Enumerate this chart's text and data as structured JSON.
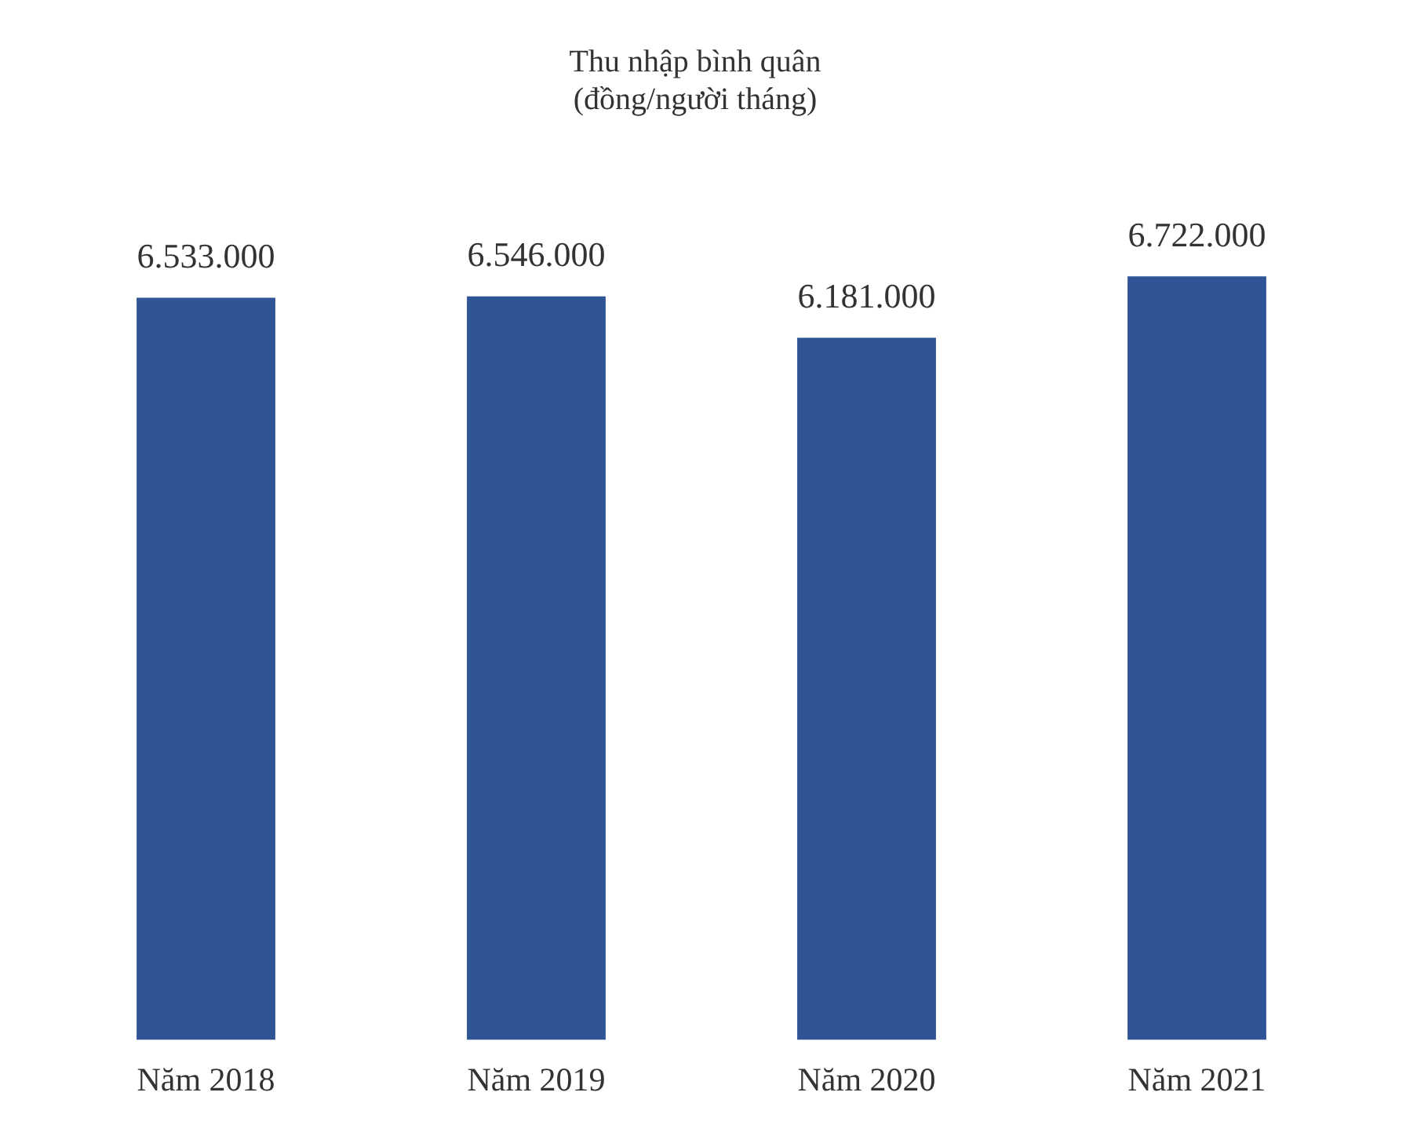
{
  "chart_data": {
    "type": "bar",
    "title": "Thu nhập bình quân",
    "subtitle": "(đồng/người tháng)",
    "categories": [
      "Năm 2018",
      "Năm 2019",
      "Năm 2020",
      "Năm 2021"
    ],
    "values": [
      6533000,
      6546000,
      6181000,
      6722000
    ],
    "value_labels": [
      "6.533.000",
      "6.546.000",
      "6.181.000",
      "6.722.000"
    ],
    "color": "#2f5597",
    "tick_labels": "x",
    "grid": false,
    "legend": false
  }
}
